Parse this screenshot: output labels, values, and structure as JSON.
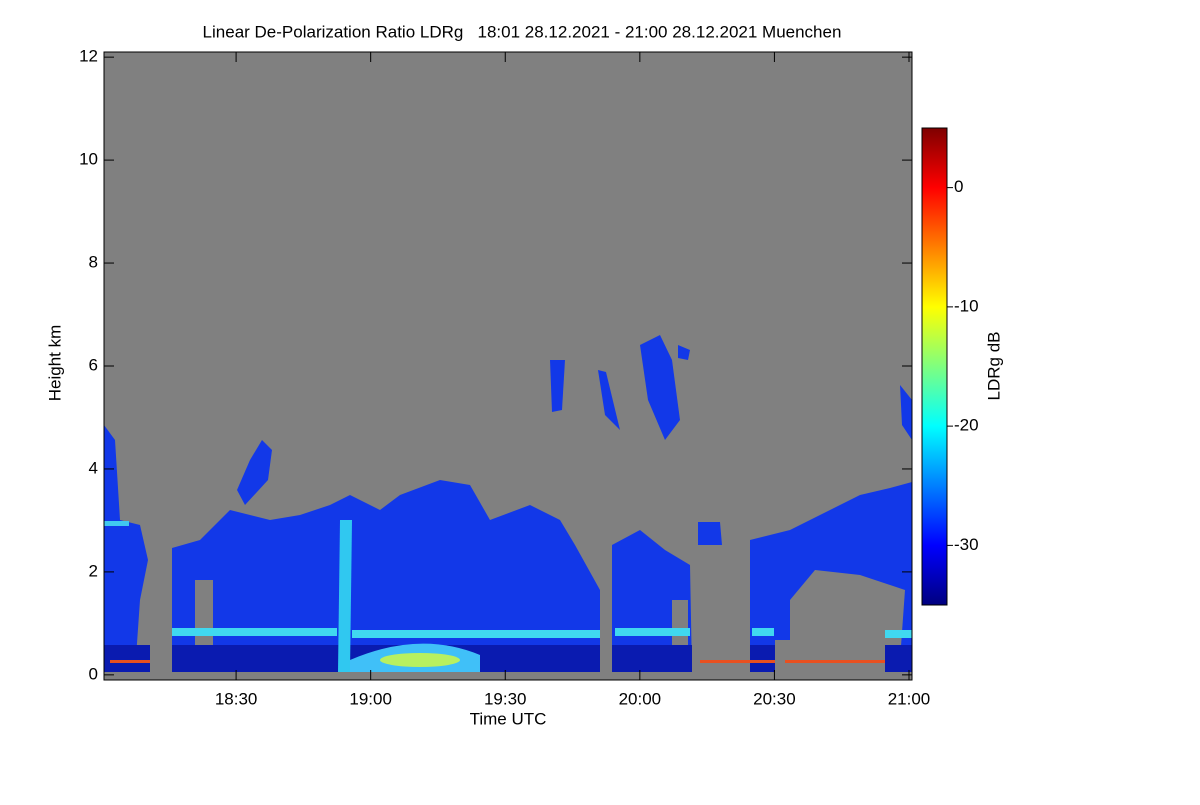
{
  "chart_data": {
    "type": "heatmap",
    "title": "Linear De-Polarization Ratio LDRg   18:01 28.12.2021 - 21:00 28.12.2021 Muenchen",
    "xlabel": "Time UTC",
    "ylabel": "Height km",
    "colorbar_label": "LDRg dB",
    "xlim": [
      1081,
      1260
    ],
    "xticks": [
      {
        "value": 1110,
        "label": "18:30"
      },
      {
        "value": 1140,
        "label": "19:00"
      },
      {
        "value": 1170,
        "label": "19:30"
      },
      {
        "value": 1200,
        "label": "20:00"
      },
      {
        "value": 1230,
        "label": "20:30"
      },
      {
        "value": 1260,
        "label": "21:00"
      }
    ],
    "ylim": [
      -0.1,
      12.1
    ],
    "yticks": [
      0,
      2,
      4,
      6,
      8,
      10,
      12
    ],
    "zlim": [
      -35,
      5
    ],
    "zticks": [
      -30,
      -20,
      -10,
      0
    ],
    "colormap": [
      "#00007f",
      "#0000ff",
      "#007fff",
      "#00ffff",
      "#7fff7f",
      "#ffff00",
      "#ff7f00",
      "#ff0000",
      "#7f0000"
    ],
    "background": "#808080"
  }
}
